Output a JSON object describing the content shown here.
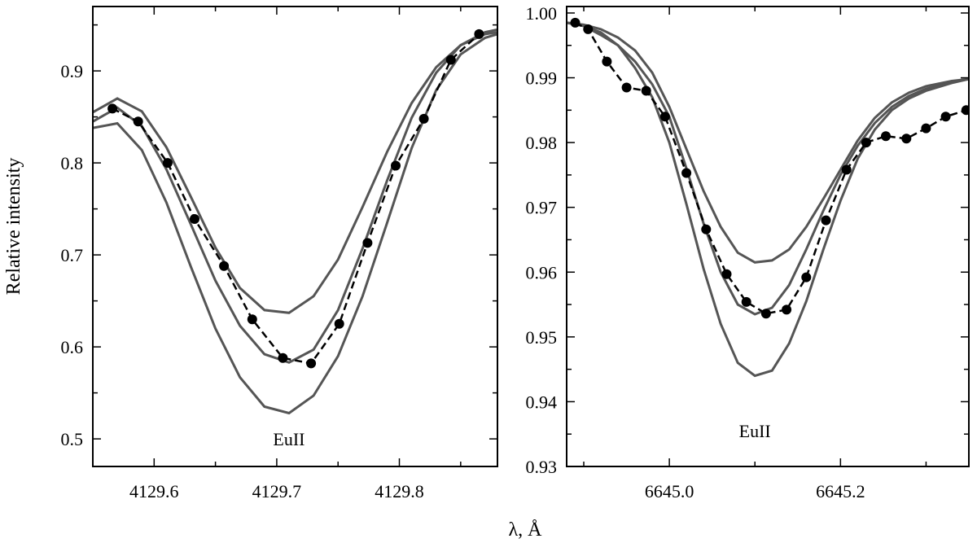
{
  "chart_data": {
    "ylabel": "Relative intensity",
    "xlabel": "λ, Å",
    "panels": [
      {
        "type": "line",
        "xlim": [
          4129.55,
          4129.88
        ],
        "ylim": [
          0.47,
          0.97
        ],
        "xticks": [
          4129.6,
          4129.7,
          4129.8
        ],
        "xtick_labels": [
          "4129.6",
          "4129.7",
          "4129.8"
        ],
        "yticks": [
          0.5,
          0.6,
          0.7,
          0.8,
          0.9
        ],
        "ytick_labels": [
          "0.5",
          "0.6",
          "0.7",
          "0.8",
          "0.9"
        ],
        "annotation": {
          "text": "EuII",
          "x": 4129.71,
          "y": 0.5
        },
        "series": [
          {
            "kind": "model",
            "x": [
              4129.55,
              4129.57,
              4129.59,
              4129.61,
              4129.63,
              4129.65,
              4129.67,
              4129.69,
              4129.71,
              4129.73,
              4129.75,
              4129.77,
              4129.79,
              4129.81,
              4129.83,
              4129.85,
              4129.87,
              4129.88
            ],
            "y": [
              0.855,
              0.87,
              0.856,
              0.817,
              0.763,
              0.708,
              0.664,
              0.64,
              0.637,
              0.655,
              0.695,
              0.752,
              0.812,
              0.865,
              0.904,
              0.928,
              0.94,
              0.942
            ]
          },
          {
            "kind": "model",
            "x": [
              4129.55,
              4129.57,
              4129.59,
              4129.61,
              4129.63,
              4129.65,
              4129.67,
              4129.69,
              4129.71,
              4129.73,
              4129.75,
              4129.77,
              4129.79,
              4129.81,
              4129.83,
              4129.85,
              4129.87,
              4129.88
            ],
            "y": [
              0.845,
              0.86,
              0.84,
              0.793,
              0.733,
              0.672,
              0.623,
              0.592,
              0.583,
              0.597,
              0.64,
              0.707,
              0.781,
              0.849,
              0.898,
              0.928,
              0.942,
              0.945
            ]
          },
          {
            "kind": "model",
            "x": [
              4129.55,
              4129.57,
              4129.59,
              4129.61,
              4129.63,
              4129.65,
              4129.67,
              4129.69,
              4129.71,
              4129.73,
              4129.75,
              4129.77,
              4129.79,
              4129.81,
              4129.83,
              4129.85,
              4129.87,
              4129.88
            ],
            "y": [
              0.838,
              0.843,
              0.814,
              0.757,
              0.687,
              0.62,
              0.567,
              0.535,
              0.528,
              0.547,
              0.59,
              0.655,
              0.735,
              0.816,
              0.879,
              0.918,
              0.936,
              0.94
            ]
          },
          {
            "kind": "observed",
            "x": [
              4129.566,
              4129.587,
              4129.611,
              4129.633,
              4129.657,
              4129.68,
              4129.705,
              4129.728,
              4129.751,
              4129.774,
              4129.797,
              4129.82,
              4129.842,
              4129.865
            ],
            "y": [
              0.859,
              0.845,
              0.8,
              0.739,
              0.688,
              0.63,
              0.588,
              0.582,
              0.625,
              0.713,
              0.797,
              0.848,
              0.912,
              0.94
            ]
          }
        ]
      },
      {
        "type": "line",
        "xlim": [
          6644.88,
          6645.35
        ],
        "ylim": [
          0.93,
          1.001
        ],
        "xticks": [
          6645.0,
          6645.2
        ],
        "xtick_labels": [
          "6645.0",
          "6645.2"
        ],
        "yticks": [
          0.93,
          0.94,
          0.95,
          0.96,
          0.97,
          0.98,
          0.99,
          1.0
        ],
        "ytick_labels": [
          "0.93",
          "0.94",
          "0.95",
          "0.96",
          "0.97",
          "0.98",
          "0.99",
          "1.00"
        ],
        "annotation": {
          "text": "EuII",
          "x": 6645.1,
          "y": 0.9355
        },
        "series": [
          {
            "kind": "model",
            "x": [
              6644.88,
              6644.9,
              6644.92,
              6644.94,
              6644.96,
              6644.98,
              6645.0,
              6645.02,
              6645.04,
              6645.06,
              6645.08,
              6645.1,
              6645.12,
              6645.14,
              6645.16,
              6645.18,
              6645.2,
              6645.22,
              6645.24,
              6645.26,
              6645.28,
              6645.3,
              6645.33,
              6645.35
            ],
            "y": [
              0.9985,
              0.9982,
              0.9975,
              0.9962,
              0.9942,
              0.9908,
              0.9855,
              0.979,
              0.9725,
              0.967,
              0.963,
              0.9615,
              0.9618,
              0.9635,
              0.967,
              0.9713,
              0.9758,
              0.9803,
              0.9838,
              0.9862,
              0.9877,
              0.9887,
              0.9895,
              0.9898
            ]
          },
          {
            "kind": "model",
            "x": [
              6644.88,
              6644.9,
              6644.92,
              6644.94,
              6644.96,
              6644.98,
              6645.0,
              6645.02,
              6645.04,
              6645.06,
              6645.08,
              6645.1,
              6645.12,
              6645.14,
              6645.16,
              6645.18,
              6645.2,
              6645.22,
              6645.24,
              6645.26,
              6645.28,
              6645.3,
              6645.33,
              6645.35
            ],
            "y": [
              0.9985,
              0.998,
              0.9966,
              0.995,
              0.9925,
              0.989,
              0.984,
              0.976,
              0.9675,
              0.96,
              0.955,
              0.9535,
              0.9545,
              0.958,
              0.9635,
              0.9695,
              0.975,
              0.9795,
              0.983,
              0.9855,
              0.9872,
              0.9883,
              0.9893,
              0.9898
            ]
          },
          {
            "kind": "model",
            "x": [
              6644.88,
              6644.9,
              6644.92,
              6644.94,
              6644.96,
              6644.98,
              6645.0,
              6645.02,
              6645.04,
              6645.06,
              6645.08,
              6645.1,
              6645.12,
              6645.14,
              6645.16,
              6645.18,
              6645.2,
              6645.22,
              6645.24,
              6645.26,
              6645.28,
              6645.3,
              6645.33,
              6645.35
            ],
            "y": [
              0.9985,
              0.998,
              0.997,
              0.995,
              0.9915,
              0.987,
              0.98,
              0.9705,
              0.9605,
              0.952,
              0.946,
              0.944,
              0.9448,
              0.949,
              0.9555,
              0.9635,
              0.971,
              0.9775,
              0.982,
              0.985,
              0.9868,
              0.988,
              0.9892,
              0.9898
            ]
          },
          {
            "kind": "observed",
            "x": [
              6644.89,
              6644.905,
              6644.927,
              6644.95,
              6644.973,
              6644.995,
              6645.02,
              6645.043,
              6645.067,
              6645.09,
              6645.113,
              6645.137,
              6645.16,
              6645.183,
              6645.207,
              6645.23,
              6645.253,
              6645.277,
              6645.3,
              6645.323,
              6645.347
            ],
            "y": [
              0.9985,
              0.9975,
              0.9925,
              0.9885,
              0.988,
              0.984,
              0.9753,
              0.9666,
              0.9597,
              0.9554,
              0.9536,
              0.9542,
              0.9592,
              0.968,
              0.9758,
              0.98,
              0.981,
              0.9806,
              0.9822,
              0.984,
              0.985
            ]
          }
        ]
      }
    ]
  }
}
